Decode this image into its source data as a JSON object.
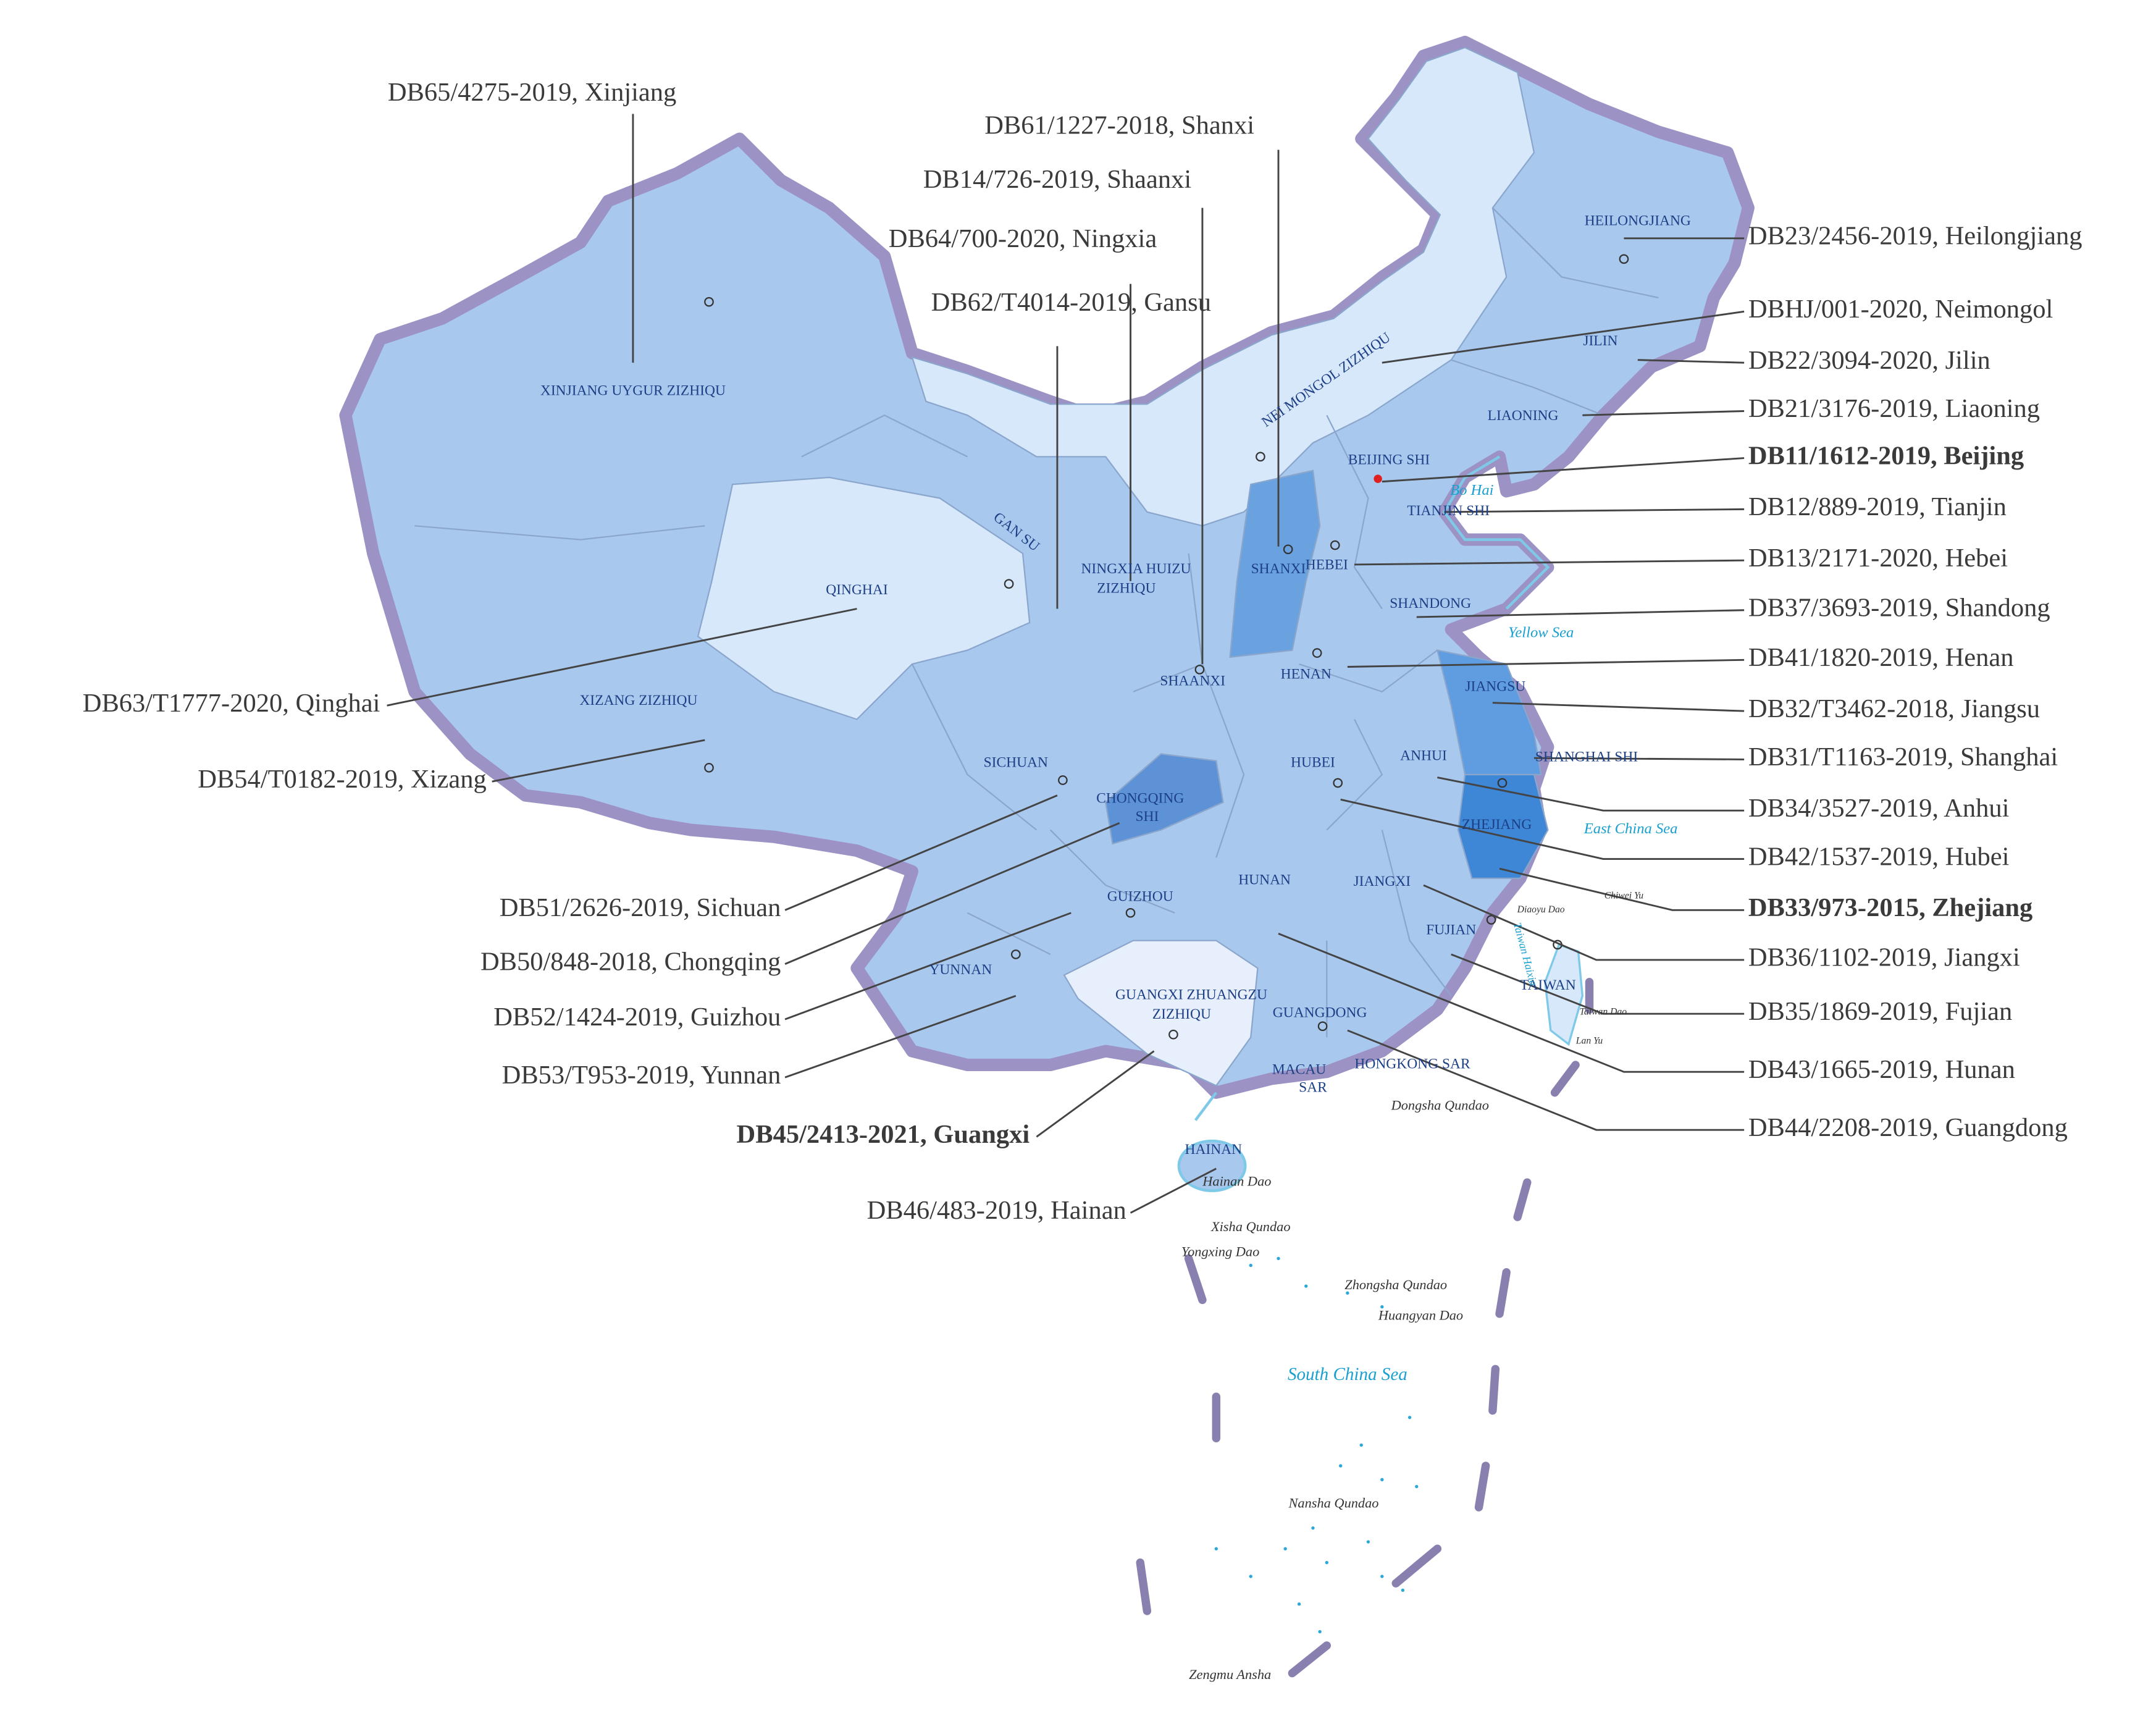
{
  "standards": [
    {
      "label": "DB23/2456-2019, Heilongjiang",
      "bold": false
    },
    {
      "label": "DBHJ/001-2020, Neimongol",
      "bold": false
    },
    {
      "label": "DB22/3094-2020, Jilin",
      "bold": false
    },
    {
      "label": "DB21/3176-2019, Liaoning",
      "bold": false
    },
    {
      "label": "DB11/1612-2019, Beijing",
      "bold": true
    },
    {
      "label": "DB12/889-2019, Tianjin",
      "bold": false
    },
    {
      "label": "DB13/2171-2020, Hebei",
      "bold": false
    },
    {
      "label": "DB37/3693-2019, Shandong",
      "bold": false
    },
    {
      "label": "DB41/1820-2019, Henan",
      "bold": false
    },
    {
      "label": "DB32/T3462-2018, Jiangsu",
      "bold": false
    },
    {
      "label": "DB31/T1163-2019, Shanghai",
      "bold": false
    },
    {
      "label": "DB34/3527-2019, Anhui",
      "bold": false
    },
    {
      "label": "DB42/1537-2019, Hubei",
      "bold": false
    },
    {
      "label": "DB33/973-2015, Zhejiang",
      "bold": true
    },
    {
      "label": "DB36/1102-2019, Jiangxi",
      "bold": false
    },
    {
      "label": "DB35/1869-2019, Fujian",
      "bold": false
    },
    {
      "label": "DB43/1665-2019, Hunan",
      "bold": false
    },
    {
      "label": "DB44/2208-2019, Guangdong",
      "bold": false
    },
    {
      "label": "DB65/4275-2019, Xinjiang",
      "bold": false
    },
    {
      "label": "DB61/1227-2018, Shanxi",
      "bold": false
    },
    {
      "label": "DB14/726-2019, Shaanxi",
      "bold": false
    },
    {
      "label": "DB64/700-2020, Ningxia",
      "bold": false
    },
    {
      "label": "DB62/T4014-2019, Gansu",
      "bold": false
    },
    {
      "label": "DB63/T1777-2020, Qinghai",
      "bold": false
    },
    {
      "label": "DB54/T0182-2019, Xizang",
      "bold": false
    },
    {
      "label": "DB51/2626-2019, Sichuan",
      "bold": false
    },
    {
      "label": "DB50/848-2018, Chongqing",
      "bold": false
    },
    {
      "label": "DB52/1424-2019, Guizhou",
      "bold": false
    },
    {
      "label": "DB53/T953-2019, Yunnan",
      "bold": false
    },
    {
      "label": "DB45/2413-2021, Guangxi",
      "bold": true
    },
    {
      "label": "DB46/483-2019, Hainan",
      "bold": false
    }
  ],
  "map_labels": [
    "XINJIANG UYGUR ZIZHIQU",
    "XIZANG ZIZHIQU",
    "QINGHAI",
    "GAN SU",
    "NINGXIA HUIZU",
    "ZIZHIQU",
    "NEI MONGOL ZIZHIQU",
    "HEILONGJIANG",
    "JILIN",
    "LIAONING",
    "BEIJING SHI",
    "TIANJIN SHI",
    "HEBEI",
    "SHANXI",
    "SHANDONG",
    "HENAN",
    "SHAANXI",
    "JIANGSU",
    "SHANGHAI SHI",
    "ANHUI",
    "HUBEI",
    "SICHUAN",
    "CHONGQING",
    "SHI",
    "ZHEJIANG",
    "JIANGXI",
    "HUNAN",
    "GUIZHOU",
    "FUJIAN",
    "TAIWAN",
    "YUNNAN",
    "GUANGXI ZHUANGZU",
    "ZIZHIQU",
    "GUANGDONG",
    "HONGKONG SAR",
    "MACAU",
    "SAR",
    "HAINAN"
  ],
  "water_labels": [
    "Bo Hai",
    "Yellow Sea",
    "East China Sea",
    "South  China  Sea",
    "Taiwan Haixia"
  ],
  "island_labels": [
    "Chiwei Yu",
    "Diaoyu Dao",
    "Taiwan Dao",
    "Lan Yu",
    "Dongsha Qundao",
    "Hainan Dao",
    "Xisha Qundao",
    "Yongxing Dao",
    "Zhongsha Qundao",
    "Huangyan Dao",
    "Nansha Qundao",
    "Zengmu Ansha"
  ]
}
